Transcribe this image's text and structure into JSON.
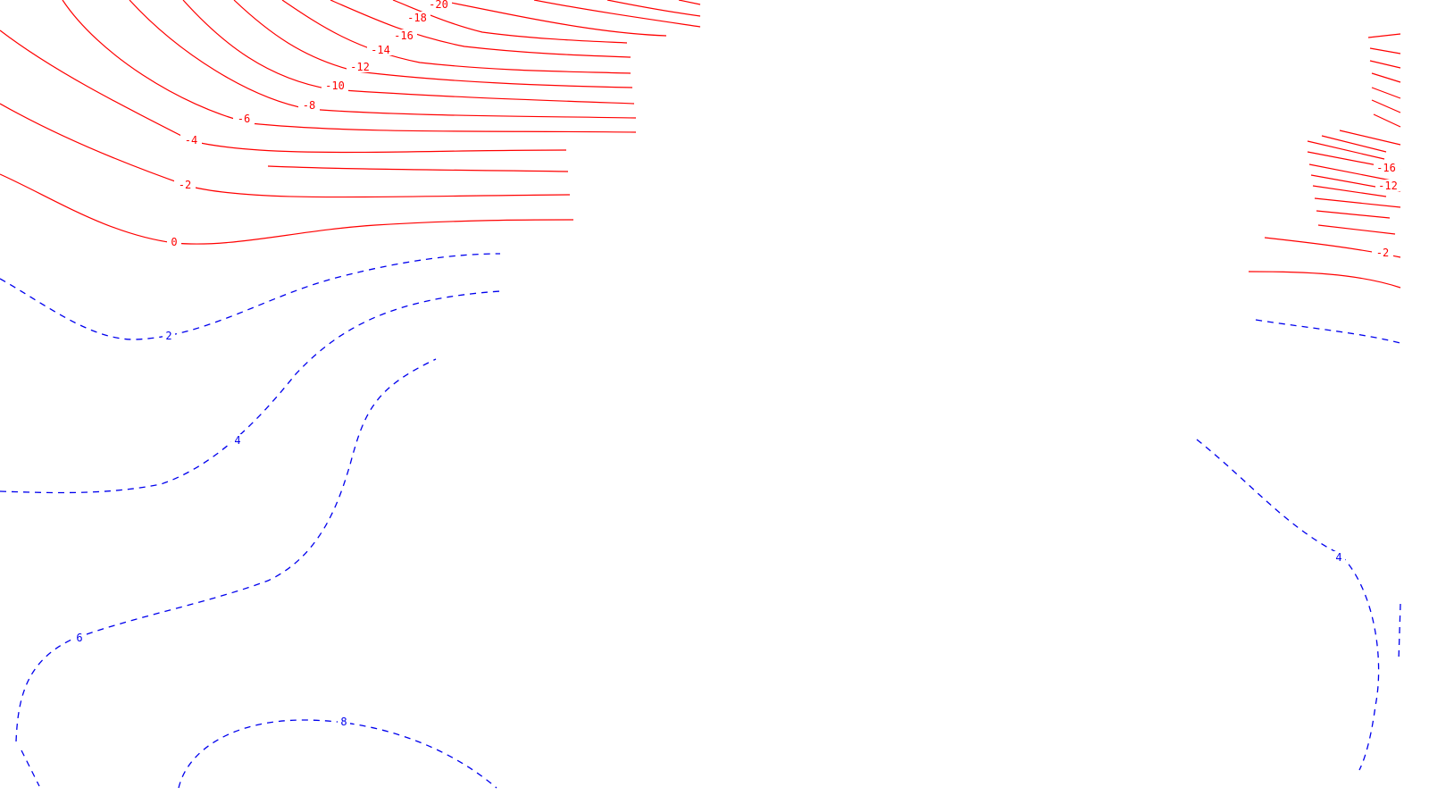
{
  "colors": {
    "negative": "#ff0000",
    "positive": "#0000ee",
    "background": "#ffffff"
  },
  "left_negative_labels": {
    "c_20": "-20",
    "c_18": "-18",
    "c_16": "-16",
    "c_14": "-14",
    "c_12": "-12",
    "c_10": "-10",
    "c_8": "-8",
    "c_6": "-6",
    "c_4": "-4",
    "c_2": "-2",
    "c_0": "0"
  },
  "left_positive_labels": {
    "c2": "2",
    "c4": "4",
    "c6": "6",
    "c8": "8"
  },
  "right_negative_labels": {
    "c_16": "-16",
    "c_12": "-12",
    "c_2": "-2"
  },
  "right_positive_labels": {
    "c4": "4"
  }
}
